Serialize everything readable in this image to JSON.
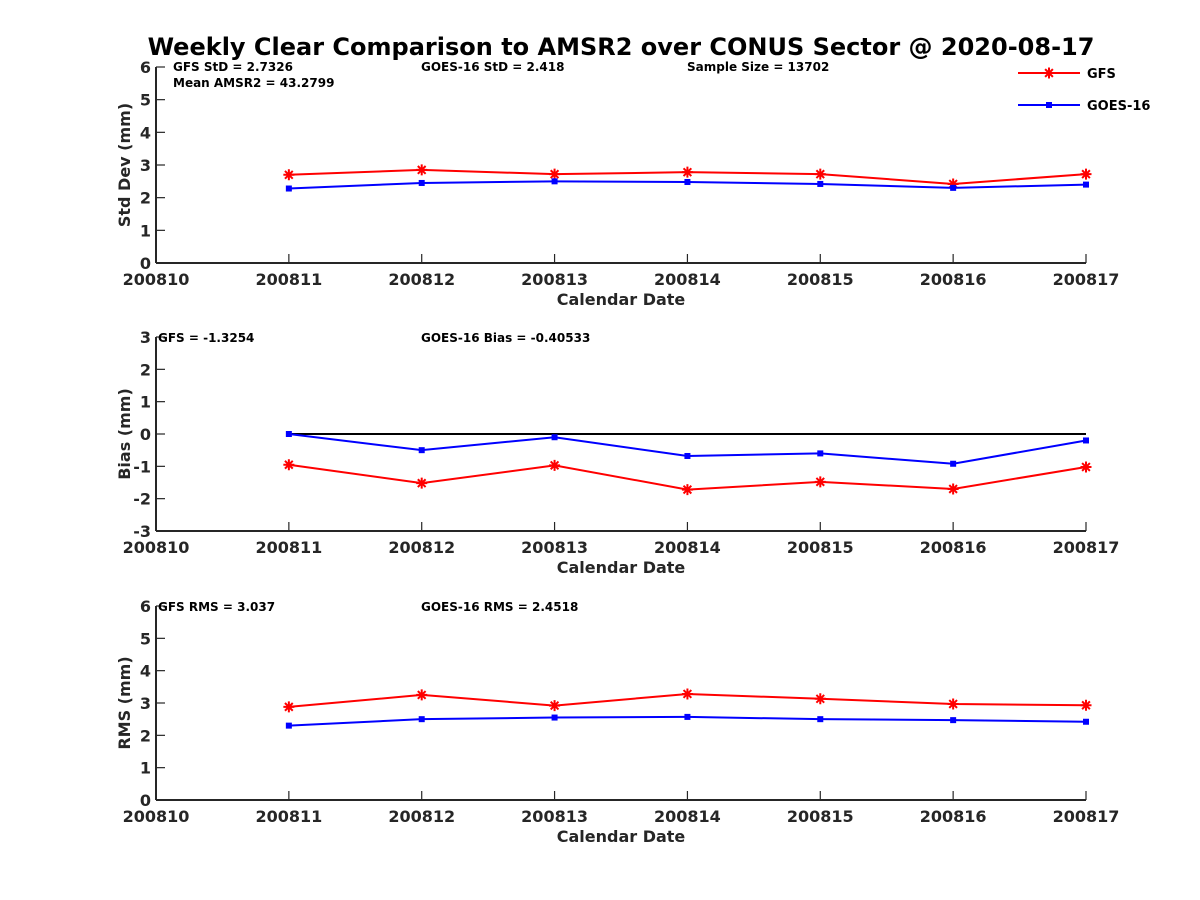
{
  "title": "Weekly Clear Comparison to AMSR2 over CONUS Sector @ 2020-08-17",
  "legend": {
    "placement": "top-right",
    "entries": [
      {
        "name": "GFS",
        "color": "#ff0000",
        "marker": "asterisk"
      },
      {
        "name": "GOES-16",
        "color": "#0000ff",
        "marker": "square"
      }
    ]
  },
  "chart_data": [
    {
      "type": "line",
      "panel": "std-dev",
      "title": "",
      "xlabel": "Calendar Date",
      "ylabel": "Std Dev (mm)",
      "x_tick_labels": [
        "200810",
        "200811",
        "200812",
        "200813",
        "200814",
        "200815",
        "200816",
        "200817"
      ],
      "categories": [
        "200811",
        "200812",
        "200813",
        "200814",
        "200815",
        "200816",
        "200817"
      ],
      "xlim": [
        "200810",
        "200817"
      ],
      "ylim": [
        0,
        6
      ],
      "yticks": [
        0,
        1,
        2,
        3,
        4,
        5,
        6
      ],
      "grid": false,
      "annotations": [
        "GFS StD = 2.7326",
        "GOES-16 StD = 2.418",
        "Sample Size = 13702",
        "Mean AMSR2 = 43.2799"
      ],
      "series": [
        {
          "name": "GFS",
          "color": "#ff0000",
          "marker": "asterisk",
          "values": [
            2.7,
            2.85,
            2.72,
            2.78,
            2.72,
            2.42,
            2.72
          ]
        },
        {
          "name": "GOES-16",
          "color": "#0000ff",
          "marker": "square",
          "values": [
            2.28,
            2.45,
            2.5,
            2.48,
            2.42,
            2.3,
            2.4
          ]
        }
      ]
    },
    {
      "type": "line",
      "panel": "bias",
      "title": "",
      "xlabel": "Calendar Date",
      "ylabel": "Bias (mm)",
      "x_tick_labels": [
        "200810",
        "200811",
        "200812",
        "200813",
        "200814",
        "200815",
        "200816",
        "200817"
      ],
      "categories": [
        "200811",
        "200812",
        "200813",
        "200814",
        "200815",
        "200816",
        "200817"
      ],
      "xlim": [
        "200810",
        "200817"
      ],
      "ylim": [
        -3,
        3
      ],
      "yticks": [
        -3,
        -2,
        -1,
        0,
        1,
        2,
        3
      ],
      "grid": false,
      "reference_line": {
        "y": 0,
        "color": "#000000"
      },
      "annotations": [
        "GFS = -1.3254",
        "GOES-16 Bias  = -0.40533"
      ],
      "series": [
        {
          "name": "GFS",
          "color": "#ff0000",
          "marker": "asterisk",
          "values": [
            -0.95,
            -1.52,
            -0.97,
            -1.72,
            -1.48,
            -1.7,
            -1.02
          ]
        },
        {
          "name": "GOES-16",
          "color": "#0000ff",
          "marker": "square",
          "values": [
            0.0,
            -0.5,
            -0.1,
            -0.68,
            -0.6,
            -0.92,
            -0.2
          ]
        }
      ]
    },
    {
      "type": "line",
      "panel": "rms",
      "title": "",
      "xlabel": "Calendar Date",
      "ylabel": "RMS (mm)",
      "x_tick_labels": [
        "200810",
        "200811",
        "200812",
        "200813",
        "200814",
        "200815",
        "200816",
        "200817"
      ],
      "categories": [
        "200811",
        "200812",
        "200813",
        "200814",
        "200815",
        "200816",
        "200817"
      ],
      "xlim": [
        "200810",
        "200817"
      ],
      "ylim": [
        0,
        6
      ],
      "yticks": [
        0,
        1,
        2,
        3,
        4,
        5,
        6
      ],
      "grid": false,
      "annotations": [
        "GFS RMS = 3.037",
        "GOES-16 RMS = 2.4518"
      ],
      "series": [
        {
          "name": "GFS",
          "color": "#ff0000",
          "marker": "asterisk",
          "values": [
            2.88,
            3.25,
            2.92,
            3.28,
            3.13,
            2.97,
            2.93
          ]
        },
        {
          "name": "GOES-16",
          "color": "#0000ff",
          "marker": "square",
          "values": [
            2.3,
            2.5,
            2.55,
            2.57,
            2.5,
            2.47,
            2.42
          ]
        }
      ]
    }
  ]
}
